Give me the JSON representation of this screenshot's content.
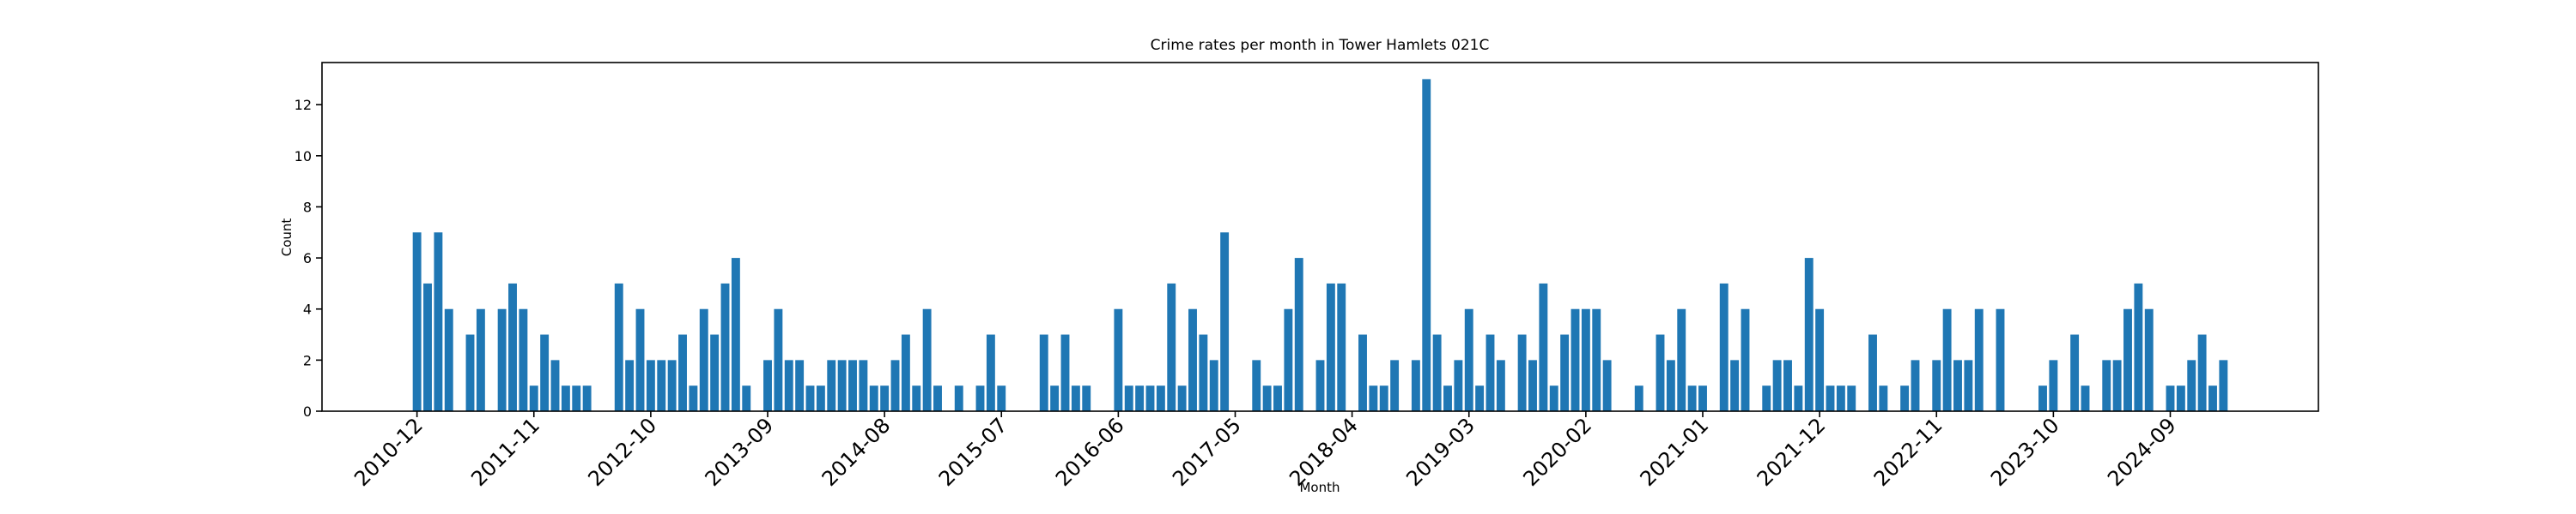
{
  "chart_data": {
    "type": "bar",
    "title": "Crime rates per month in Tower Hamlets 021C",
    "xlabel": "Month",
    "ylabel": "Count",
    "color": "#1f77b4",
    "categories": [
      "2010-12",
      null,
      null,
      null,
      null,
      null,
      null,
      null,
      null,
      null,
      null,
      "2011-11",
      null,
      null,
      null,
      null,
      null,
      null,
      null,
      null,
      null,
      null,
      "2012-10",
      null,
      null,
      null,
      null,
      null,
      null,
      null,
      null,
      null,
      null,
      "2013-09",
      null,
      null,
      null,
      null,
      null,
      null,
      null,
      null,
      null,
      null,
      "2014-08",
      null,
      null,
      null,
      null,
      null,
      null,
      null,
      null,
      null,
      null,
      "2015-07",
      null,
      null,
      null,
      null,
      null,
      null,
      null,
      null,
      null,
      null,
      "2016-06",
      null,
      null,
      null,
      null,
      null,
      null,
      null,
      null,
      null,
      null,
      "2017-05",
      null,
      null,
      null,
      null,
      null,
      null,
      null,
      null,
      null,
      null,
      "2018-04",
      null,
      null,
      null,
      null,
      null,
      null,
      null,
      null,
      null,
      null,
      "2019-03",
      null,
      null,
      null,
      null,
      null,
      null,
      null,
      null,
      null,
      null,
      "2020-02",
      null,
      null,
      null,
      null,
      null,
      null,
      null,
      null,
      null,
      null,
      "2021-01",
      null,
      null,
      null,
      null,
      null,
      null,
      null,
      null,
      null,
      null,
      "2021-12",
      null,
      null,
      null,
      null,
      null,
      null,
      null,
      null,
      null,
      null,
      "2022-11",
      null,
      null,
      null,
      null,
      null,
      null,
      null,
      null,
      null,
      null,
      "2023-10",
      null,
      null,
      null,
      null,
      null,
      null,
      null,
      null,
      null,
      null,
      "2024-09",
      null,
      null,
      null,
      null,
      null
    ],
    "values": [
      7,
      5,
      7,
      4,
      0,
      3,
      4,
      0,
      4,
      5,
      4,
      1,
      3,
      2,
      1,
      1,
      1,
      0,
      0,
      5,
      2,
      4,
      2,
      2,
      2,
      3,
      1,
      4,
      3,
      5,
      6,
      1,
      0,
      2,
      4,
      2,
      2,
      1,
      1,
      2,
      2,
      2,
      2,
      1,
      1,
      2,
      3,
      1,
      4,
      1,
      0,
      1,
      0,
      1,
      3,
      1,
      0,
      0,
      0,
      3,
      1,
      3,
      1,
      1,
      0,
      0,
      4,
      1,
      1,
      1,
      1,
      5,
      1,
      4,
      3,
      2,
      7,
      0,
      0,
      2,
      1,
      1,
      4,
      6,
      0,
      2,
      5,
      5,
      0,
      3,
      1,
      1,
      2,
      0,
      2,
      13,
      3,
      1,
      2,
      4,
      1,
      3,
      2,
      0,
      3,
      2,
      5,
      1,
      3,
      4,
      4,
      4,
      2,
      0,
      0,
      1,
      0,
      3,
      2,
      4,
      1,
      1,
      0,
      5,
      2,
      4,
      0,
      1,
      2,
      2,
      1,
      6,
      4,
      1,
      1,
      1,
      0,
      3,
      1,
      0,
      1,
      2,
      0,
      2,
      4,
      2,
      2,
      4,
      0,
      4,
      0,
      0,
      0,
      1,
      2,
      0,
      3,
      1,
      0,
      2,
      2,
      4,
      5,
      4,
      0,
      1,
      1,
      2,
      3,
      1,
      2
    ],
    "ylim": [
      0,
      13.65
    ],
    "yticks": [
      0,
      2,
      4,
      6,
      8,
      10,
      12
    ]
  }
}
